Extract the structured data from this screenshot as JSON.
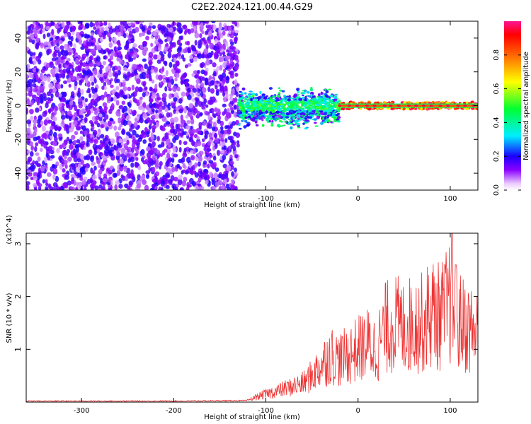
{
  "title": "C2E2.2024.121.00.44.G29",
  "colorbar": {
    "label": "Normalized spectral amplitude",
    "ticks": [
      {
        "value": 0.0,
        "label": "0.0"
      },
      {
        "value": 0.2,
        "label": "0.2"
      },
      {
        "value": 0.4,
        "label": "0.4"
      },
      {
        "value": 0.6,
        "label": "0.6"
      },
      {
        "value": 0.8,
        "label": "0.8"
      }
    ]
  },
  "chart_data": [
    {
      "type": "heatmap",
      "title": "",
      "xlabel": "Height of straight line (km)",
      "ylabel": "Frequency (Hz)",
      "xlim": [
        -360,
        130
      ],
      "ylim": [
        -50,
        50
      ],
      "xticks": [
        -300,
        -200,
        -100,
        0,
        100
      ],
      "yticks": [
        -40,
        -20,
        0,
        20,
        40
      ],
      "grid": false,
      "regions": [
        {
          "x": [
            -360,
            -130
          ],
          "freq_range": [
            -50,
            50
          ],
          "amplitude_range": [
            0.05,
            0.2
          ],
          "pattern": "scattered noise"
        },
        {
          "x": [
            -130,
            -20
          ],
          "freq_range": [
            -20,
            10
          ],
          "amplitude_range": [
            0.1,
            0.5
          ],
          "pattern": "noisy band centered near 0 Hz"
        },
        {
          "x": [
            -20,
            130
          ],
          "freq_range": [
            -2,
            2
          ],
          "amplitude_range": [
            0.6,
            1.0
          ],
          "pattern": "narrow strong line at 0 Hz"
        }
      ]
    },
    {
      "type": "line",
      "title": "",
      "xlabel": "Height of straight line (km)",
      "ylabel": "SNR (10 * v/v)",
      "y_multiplier": "(x10^4)",
      "xlim": [
        -360,
        130
      ],
      "ylim": [
        0,
        3.2
      ],
      "xticks": [
        -300,
        -200,
        -100,
        0,
        100
      ],
      "yticks": [
        1,
        2,
        3
      ],
      "grid": false,
      "color": "#ee3333",
      "series": [
        {
          "x": [
            -360,
            -300,
            -200,
            -120,
            -110,
            -100,
            -90,
            -80,
            -70,
            -60,
            -50,
            -40,
            -30,
            -20,
            -10,
            0,
            10,
            20,
            30,
            40,
            50,
            60,
            70,
            80,
            90,
            100,
            110,
            120,
            130
          ],
          "values": [
            0.02,
            0.02,
            0.02,
            0.03,
            0.1,
            0.15,
            0.2,
            0.25,
            0.3,
            0.35,
            0.5,
            0.7,
            0.9,
            0.8,
            0.9,
            1.0,
            1.1,
            1.0,
            1.4,
            1.5,
            1.4,
            1.5,
            1.5,
            1.7,
            1.6,
            1.9,
            1.5,
            1.4,
            1.3
          ]
        }
      ]
    }
  ]
}
